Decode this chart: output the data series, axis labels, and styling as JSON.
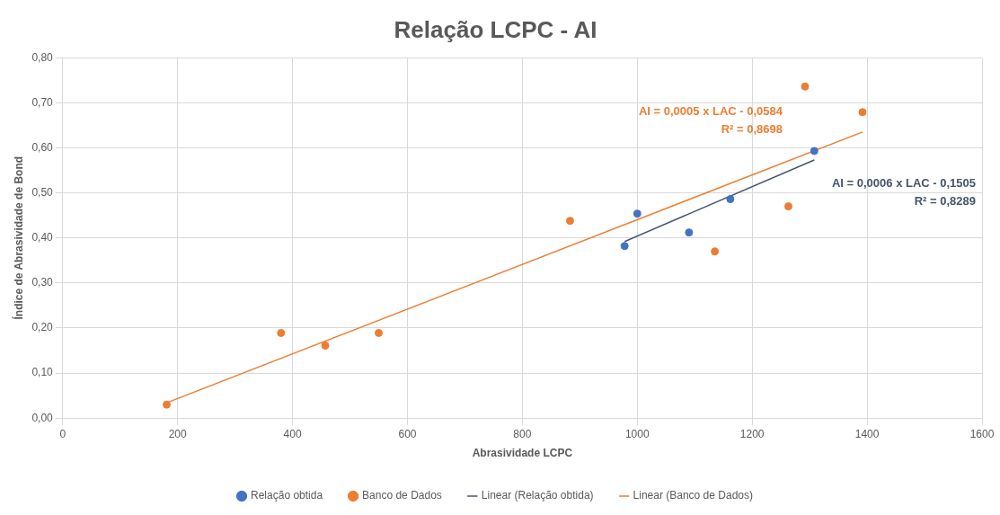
{
  "chart_data": {
    "type": "scatter",
    "title": "Relação LCPC - AI",
    "xlabel": "Abrasividade LCPC",
    "ylabel": "Índice de Abrasividade de Bond",
    "xlim": [
      0,
      1600
    ],
    "xticks": [
      0,
      200,
      400,
      600,
      800,
      1000,
      1200,
      1400,
      1600
    ],
    "ylim": [
      0,
      0.8
    ],
    "yticks": [
      {
        "value": 0,
        "label": "0,00"
      },
      {
        "value": 0.1,
        "label": "0,10"
      },
      {
        "value": 0.2,
        "label": "0,20"
      },
      {
        "value": 0.3,
        "label": "0,30"
      },
      {
        "value": 0.4,
        "label": "0,40"
      },
      {
        "value": 0.5,
        "label": "0,50"
      },
      {
        "value": 0.6,
        "label": "0,60"
      },
      {
        "value": 0.7,
        "label": "0,70"
      },
      {
        "value": 0.8,
        "label": "0,80"
      }
    ],
    "grid": true,
    "legend": "bottom",
    "marker": "circle",
    "series": [
      {
        "name": "Relação obtida",
        "color": "#4472c4",
        "x": [
          978,
          1000,
          1090,
          1162,
          1308
        ],
        "values": [
          0.382,
          0.454,
          0.412,
          0.486,
          0.593
        ]
      },
      {
        "name": "Banco de Dados",
        "color": "#ed7d31",
        "x": [
          181,
          380,
          457,
          550,
          883,
          1135,
          1263,
          1292,
          1392
        ],
        "values": [
          0.03,
          0.189,
          0.161,
          0.189,
          0.438,
          0.37,
          0.47,
          0.736,
          0.679
        ]
      },
      {
        "name": "Linear (Relação obtida)",
        "type": "line",
        "marker": "none",
        "color": "#44546a",
        "x": [
          978,
          1308
        ],
        "values": [
          0.392,
          0.573
        ]
      },
      {
        "name": "Linear (Banco de Dados)",
        "type": "line",
        "marker": "none",
        "color": "#ed7d31",
        "x": [
          181,
          1392
        ],
        "values": [
          0.034,
          0.635
        ]
      }
    ],
    "annotations": [
      "AI = 0,0005 x LAC - 0,0584\nR² = 0,8698",
      "AI = 0,0006 x LAC - 0,1505\nR² = 0,8289"
    ]
  }
}
